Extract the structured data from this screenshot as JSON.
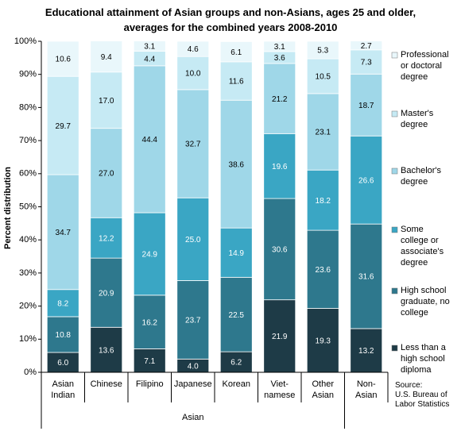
{
  "chart_data": {
    "type": "stacked_bar",
    "title": "Educational attainment of Asian groups and non-Asians, ages 25 and older,\naverages for the combined years 2008-2010",
    "y_label": "Percent distribution",
    "group_label": "Asian",
    "source": "Source:\nU.S. Bureau of\nLabor Statistics",
    "categories": [
      "Asian\nIndian",
      "Chinese",
      "Filipino",
      "Japanese",
      "Korean",
      "Viet-\nnamese",
      "Other\nAsian",
      "Non-\nAsian"
    ],
    "ylim": [
      0,
      100
    ],
    "yticks": [
      {
        "value": 0,
        "label": "0%"
      },
      {
        "value": 10,
        "label": "10%"
      },
      {
        "value": 20,
        "label": "20%"
      },
      {
        "value": 30,
        "label": "30%"
      },
      {
        "value": 40,
        "label": "40%"
      },
      {
        "value": 50,
        "label": "50%"
      },
      {
        "value": 60,
        "label": "60%"
      },
      {
        "value": 70,
        "label": "70%"
      },
      {
        "value": 80,
        "label": "80%"
      },
      {
        "value": 90,
        "label": "90%"
      },
      {
        "value": 100,
        "label": "100%"
      }
    ],
    "series": [
      {
        "name": "Less than a\nhigh school\ndiploma",
        "color": "#1e3b47",
        "values": [
          6.0,
          13.6,
          7.1,
          4.0,
          6.2,
          21.9,
          19.3,
          13.2
        ],
        "value_labels": [
          "6.0",
          "13.6",
          "7.1",
          "4.0",
          "6.2",
          "21.9",
          "19.3",
          "13.2"
        ]
      },
      {
        "name": "High school\ngraduate, no\ncollege",
        "color": "#2e788d",
        "values": [
          10.8,
          20.9,
          16.2,
          23.7,
          22.5,
          30.6,
          23.6,
          31.6
        ],
        "value_labels": [
          "10.8",
          "20.9",
          "16.2",
          "23.7",
          "22.5",
          "30.6",
          "23.6",
          "31.6"
        ]
      },
      {
        "name": "Some\ncollege or\nassociate's\ndegree",
        "color": "#3aa6c4",
        "values": [
          8.2,
          12.2,
          24.9,
          25.0,
          14.9,
          19.6,
          18.2,
          26.6
        ],
        "value_labels": [
          "8.2",
          "12.2",
          "24.9",
          "25.0",
          "14.9",
          "19.6",
          "18.2",
          "26.6"
        ]
      },
      {
        "name": "Bachelor's\ndegree",
        "color": "#9fd7e8",
        "values": [
          34.7,
          27.0,
          44.4,
          32.7,
          38.6,
          21.2,
          23.1,
          18.7
        ],
        "value_labels": [
          "34.7",
          "27.0",
          "44.4",
          "32.7",
          "38.6",
          "21.2",
          "23.1",
          "18.7"
        ]
      },
      {
        "name": "Master's\ndegree",
        "color": "#c6eaf4",
        "values": [
          29.7,
          17.0,
          4.4,
          10.0,
          11.6,
          3.6,
          10.5,
          7.3
        ],
        "value_labels": [
          "29.7",
          "17.0",
          "4.4",
          "10.0",
          "11.6",
          "3.6",
          "10.5",
          "7.3"
        ]
      },
      {
        "name": "Professional\nor doctoral\ndegree",
        "color": "#e9f7fb",
        "values": [
          10.6,
          9.4,
          3.1,
          4.6,
          6.1,
          3.1,
          5.3,
          2.7
        ],
        "value_labels": [
          "10.6",
          "9.4",
          "3.1",
          "4.6",
          "6.1",
          "3.1",
          "5.3",
          "2.7"
        ]
      }
    ]
  }
}
